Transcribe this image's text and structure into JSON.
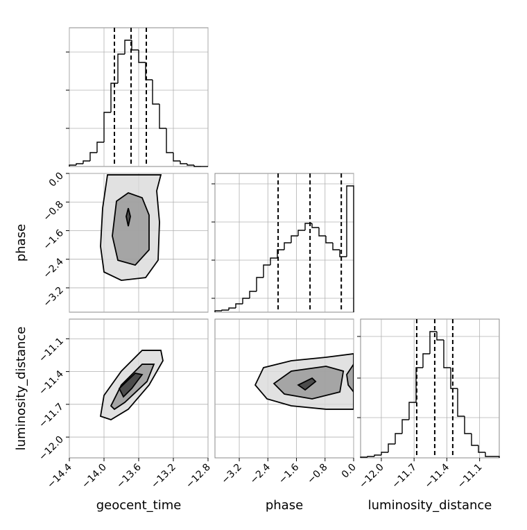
{
  "chart_data": {
    "type": "corner",
    "params": [
      {
        "name": "geocent_time",
        "lim": [
          -14.4,
          -12.8
        ],
        "ticks": [
          {
            "value": -14.4,
            "label": "−14.4"
          },
          {
            "value": -14.0,
            "label": "−14.0"
          },
          {
            "value": -13.6,
            "label": "−13.6"
          },
          {
            "value": -13.2,
            "label": "−13.2"
          },
          {
            "value": -12.8,
            "label": "−12.8"
          }
        ],
        "hist": {
          "bins": [
            -14.4,
            -14.32,
            -14.24,
            -14.16,
            -14.08,
            -14.0,
            -13.92,
            -13.84,
            -13.76,
            -13.68,
            -13.6,
            -13.52,
            -13.44,
            -13.36,
            -13.28,
            -13.2,
            -13.12,
            -13.04,
            -12.96,
            -12.88,
            -12.8
          ],
          "values": [
            2,
            4,
            8,
            20,
            35,
            78,
            120,
            162,
            182,
            168,
            150,
            125,
            90,
            55,
            20,
            8,
            4,
            2,
            0,
            0
          ],
          "ylim": [
            0,
            200
          ],
          "yticks": [
            55,
            110,
            165
          ]
        },
        "quantiles": [
          -13.88,
          -13.688,
          -13.512
        ]
      },
      {
        "name": "phase",
        "lim": [
          -3.88,
          0.0
        ],
        "ticks": [
          {
            "value": -3.2,
            "label": "−3.2"
          },
          {
            "value": -2.4,
            "label": "−2.4"
          },
          {
            "value": -1.6,
            "label": "−1.6"
          },
          {
            "value": -0.8,
            "label": "−0.8"
          },
          {
            "value": 0.0,
            "label": "0.0"
          }
        ],
        "hist": {
          "bins": [
            -3.88,
            -3.686,
            -3.492,
            -3.298,
            -3.104,
            -2.91,
            -2.716,
            -2.522,
            -2.328,
            -2.134,
            -1.94,
            -1.746,
            -1.552,
            -1.358,
            -1.164,
            -0.97,
            -0.776,
            -0.582,
            -0.388,
            -0.194,
            0
          ],
          "values": [
            2,
            3,
            6,
            12,
            20,
            30,
            50,
            68,
            78,
            90,
            100,
            110,
            118,
            128,
            122,
            110,
            100,
            90,
            80,
            182
          ],
          "ylim": [
            0,
            200
          ],
          "yticks": [
            20,
            75,
            130,
            185
          ]
        },
        "quantiles": [
          -2.113,
          -1.22,
          -0.346
        ]
      },
      {
        "name": "luminosity_distance",
        "lim": [
          -12.19,
          -10.92
        ],
        "ticks": [
          {
            "value": -12.0,
            "label": "−12.0"
          },
          {
            "value": -11.7,
            "label": "−11.7"
          },
          {
            "value": -11.4,
            "label": "−11.4"
          },
          {
            "value": -11.1,
            "label": "−11.1"
          }
        ],
        "hist": {
          "bins": [
            -12.19,
            -12.1265,
            -12.063,
            -11.9995,
            -11.936,
            -11.8725,
            -11.809,
            -11.7455,
            -11.682,
            -11.6185,
            -11.555,
            -11.4915,
            -11.428,
            -11.3645,
            -11.301,
            -11.2375,
            -11.174,
            -11.1105,
            -11.047,
            -10.9835,
            -10.92
          ],
          "values": [
            1,
            2,
            4,
            8,
            20,
            35,
            55,
            80,
            130,
            150,
            182,
            170,
            130,
            100,
            60,
            35,
            18,
            8,
            2,
            2
          ],
          "ylim": [
            0,
            200
          ],
          "yticks": [
            58,
            115,
            175
          ]
        },
        "quantiles": [
          -11.676,
          -11.511,
          -11.346
        ]
      }
    ],
    "pairs": [
      {
        "contours": [
          [
            [
              -13.96,
              -0.04
            ],
            [
              -14.016,
              -0.971
            ],
            [
              -14.04,
              -2.039
            ],
            [
              -14.0,
              -2.757
            ],
            [
              -13.8,
              -2.99
            ],
            [
              -13.52,
              -2.913
            ],
            [
              -13.376,
              -2.427
            ],
            [
              -13.36,
              -1.359
            ],
            [
              -13.392,
              -0.486
            ],
            [
              -13.344,
              -0.039
            ]
          ],
          [
            [
              -13.856,
              -0.777
            ],
            [
              -13.904,
              -1.748
            ],
            [
              -13.84,
              -2.428
            ],
            [
              -13.64,
              -2.563
            ],
            [
              -13.48,
              -2.136
            ],
            [
              -13.48,
              -1.165
            ],
            [
              -13.56,
              -0.68
            ],
            [
              -13.72,
              -0.544
            ]
          ],
          [
            [
              -13.744,
              -1.204
            ],
            [
              -13.72,
              -1.476
            ],
            [
              -13.696,
              -1.204
            ],
            [
              -13.72,
              -0.971
            ]
          ]
        ]
      },
      {
        "contours": [
          [
            [
              -14.04,
              -11.809
            ],
            [
              -14.0,
              -11.618
            ],
            [
              -13.8,
              -11.396
            ],
            [
              -13.56,
              -11.206
            ],
            [
              -13.344,
              -11.206
            ],
            [
              -13.32,
              -11.301
            ],
            [
              -13.48,
              -11.523
            ],
            [
              -13.72,
              -11.745
            ],
            [
              -13.92,
              -11.841
            ]
          ],
          [
            [
              -13.92,
              -11.714
            ],
            [
              -13.8,
              -11.523
            ],
            [
              -13.56,
              -11.333
            ],
            [
              -13.424,
              -11.333
            ],
            [
              -13.504,
              -11.491
            ],
            [
              -13.76,
              -11.682
            ],
            [
              -13.88,
              -11.745
            ]
          ],
          [
            [
              -13.824,
              -11.555
            ],
            [
              -13.64,
              -11.415
            ],
            [
              -13.56,
              -11.428
            ],
            [
              -13.68,
              -11.555
            ],
            [
              -13.776,
              -11.631
            ]
          ]
        ]
      },
      {
        "contours": [
          [
            [
              -2.754,
              -11.523
            ],
            [
              -2.521,
              -11.364
            ],
            [
              -1.744,
              -11.301
            ],
            [
              -0.773,
              -11.269
            ],
            [
              0.0,
              -11.237
            ],
            [
              0.0,
              -11.745
            ],
            [
              -0.773,
              -11.745
            ],
            [
              -1.744,
              -11.714
            ],
            [
              -2.424,
              -11.65
            ]
          ],
          [
            [
              -2.23,
              -11.51
            ],
            [
              -1.744,
              -11.396
            ],
            [
              -0.773,
              -11.352
            ],
            [
              -0.288,
              -11.396
            ],
            [
              -0.385,
              -11.587
            ],
            [
              -1.162,
              -11.65
            ],
            [
              -1.938,
              -11.606
            ]
          ],
          [
            [
              -1.55,
              -11.523
            ],
            [
              -1.162,
              -11.46
            ],
            [
              -1.064,
              -11.491
            ],
            [
              -1.356,
              -11.568
            ]
          ],
          [
            [
              0.0,
              -11.333
            ],
            [
              -0.194,
              -11.428
            ],
            [
              -0.152,
              -11.523
            ],
            [
              0.0,
              -11.587
            ]
          ]
        ]
      }
    ]
  }
}
